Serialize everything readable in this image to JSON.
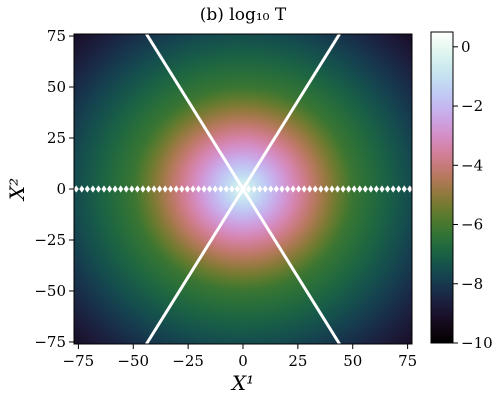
{
  "chart_data": {
    "type": "heatmap",
    "title": "(b)  log₁₀ T",
    "xlabel": "X¹",
    "ylabel": "X²",
    "xlim": [
      -77,
      77
    ],
    "ylim": [
      -76,
      76
    ],
    "x_ticks": [
      -75,
      -50,
      -25,
      0,
      25,
      50,
      75
    ],
    "y_ticks": [
      -75,
      -50,
      -25,
      0,
      25,
      50,
      75
    ],
    "x_tick_labels": [
      "−75",
      "−50",
      "−25",
      "0",
      "25",
      "50",
      "75"
    ],
    "y_tick_labels": [
      "−75",
      "−50",
      "−25",
      "0",
      "25",
      "50",
      "75"
    ],
    "colorbar": {
      "colormap": "cubehelix",
      "range": [
        -10,
        0.5
      ],
      "ticks": [
        0,
        -2,
        -4,
        -6,
        -8,
        -10
      ],
      "tick_labels": [
        "0",
        "−2",
        "−4",
        "−6",
        "−8",
        "−10"
      ]
    },
    "field": {
      "quantity": "log10 T",
      "center": [
        0,
        0
      ],
      "peak_value": 0,
      "value_at_radius_50": -6.2,
      "corner_value": -9.2
    },
    "overlay_lines": [
      {
        "points": [
          [
            -44,
            -76
          ],
          [
            44,
            76
          ]
        ],
        "color": "#ffffff"
      },
      {
        "points": [
          [
            44,
            -76
          ],
          [
            -44,
            76
          ]
        ],
        "color": "#ffffff"
      }
    ],
    "marker_row": {
      "y": 0,
      "x_start": -76,
      "x_end": 76,
      "count": 61,
      "marker": "diamond",
      "color": "#ffffff"
    }
  }
}
